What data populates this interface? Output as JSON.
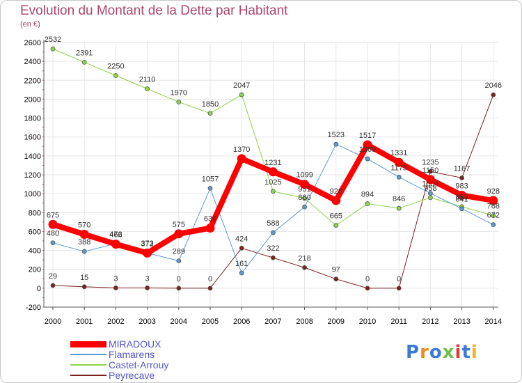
{
  "title": "Evolution du Montant de la Dette par Habitant",
  "subtitle": "(en €)",
  "logo": "Proxiti",
  "chart_data": {
    "type": "line",
    "x": [
      "2000",
      "2001",
      "2002",
      "2003",
      "2004",
      "2005",
      "2006",
      "2007",
      "2008",
      "2009",
      "2010",
      "2011",
      "2012",
      "2013",
      "2014"
    ],
    "ylim": [
      -200,
      2600
    ],
    "yticks": [
      -200,
      0,
      200,
      400,
      600,
      800,
      1000,
      1200,
      1400,
      1600,
      1800,
      2000,
      2200,
      2400,
      2600
    ],
    "grid": true,
    "legend_position": "bottom-left",
    "series": [
      {
        "name": "MIRADOUX",
        "color": "#ff0000",
        "width": 8,
        "values": [
          675,
          570,
          466,
          372,
          575,
          636,
          1370,
          1231,
          1099,
          928,
          1517,
          1331,
          1150,
          983,
          928
        ]
      },
      {
        "name": "Flamarens",
        "color": "#5b9bd5",
        "width": 1,
        "values": [
          480,
          388,
          472,
          373,
          289,
          1057,
          161,
          588,
          860,
          1523,
          1369,
          1175,
          1004,
          841,
          672
        ]
      },
      {
        "name": "Castet-Arrouy",
        "color": "#8fd24c",
        "width": 1,
        "values": [
          2532,
          2391,
          2250,
          2110,
          1970,
          1850,
          2047,
          1025,
          951,
          665,
          894,
          846,
          958,
          863,
          768
        ]
      },
      {
        "name": "Peyrecave",
        "color": "#7b2020",
        "width": 1,
        "values": [
          29,
          15,
          3,
          3,
          0,
          0,
          424,
          322,
          218,
          97,
          0,
          0,
          1235,
          1167,
          2046
        ]
      }
    ],
    "labels": [
      {
        "series": 0,
        "i": 0,
        "text": "675"
      },
      {
        "series": 0,
        "i": 1,
        "text": "570"
      },
      {
        "series": 0,
        "i": 2,
        "text": "466"
      },
      {
        "series": 0,
        "i": 3,
        "text": "372"
      },
      {
        "series": 0,
        "i": 4,
        "text": "575"
      },
      {
        "series": 0,
        "i": 5,
        "text": "636"
      },
      {
        "series": 0,
        "i": 6,
        "text": "1370"
      },
      {
        "series": 0,
        "i": 7,
        "text": "1231"
      },
      {
        "series": 0,
        "i": 8,
        "text": "1099"
      },
      {
        "series": 0,
        "i": 9,
        "text": "928"
      },
      {
        "series": 0,
        "i": 10,
        "text": "1517"
      },
      {
        "series": 0,
        "i": 11,
        "text": "1331"
      },
      {
        "series": 0,
        "i": 12,
        "text": "1150"
      },
      {
        "series": 0,
        "i": 13,
        "text": "983"
      },
      {
        "series": 0,
        "i": 14,
        "text": "928"
      },
      {
        "series": 1,
        "i": 0,
        "text": "480"
      },
      {
        "series": 1,
        "i": 1,
        "text": "388"
      },
      {
        "series": 1,
        "i": 2,
        "text": "472"
      },
      {
        "series": 1,
        "i": 3,
        "text": "373"
      },
      {
        "series": 1,
        "i": 4,
        "text": "289"
      },
      {
        "series": 1,
        "i": 5,
        "text": "1057"
      },
      {
        "series": 1,
        "i": 6,
        "text": "161"
      },
      {
        "series": 1,
        "i": 7,
        "text": "588"
      },
      {
        "series": 1,
        "i": 8,
        "text": "860"
      },
      {
        "series": 1,
        "i": 9,
        "text": "1523"
      },
      {
        "series": 1,
        "i": 10,
        "text": "1369"
      },
      {
        "series": 1,
        "i": 11,
        "text": "1175"
      },
      {
        "series": 1,
        "i": 12,
        "text": "1004"
      },
      {
        "series": 1,
        "i": 13,
        "text": "841"
      },
      {
        "series": 1,
        "i": 14,
        "text": "672"
      },
      {
        "series": 2,
        "i": 0,
        "text": "2532"
      },
      {
        "series": 2,
        "i": 1,
        "text": "2391"
      },
      {
        "series": 2,
        "i": 2,
        "text": "2250"
      },
      {
        "series": 2,
        "i": 3,
        "text": "2110"
      },
      {
        "series": 2,
        "i": 4,
        "text": "1970"
      },
      {
        "series": 2,
        "i": 5,
        "text": "1850"
      },
      {
        "series": 2,
        "i": 6,
        "text": "2047"
      },
      {
        "series": 2,
        "i": 7,
        "text": "1025"
      },
      {
        "series": 2,
        "i": 8,
        "text": "951"
      },
      {
        "series": 2,
        "i": 9,
        "text": "665"
      },
      {
        "series": 2,
        "i": 10,
        "text": "894"
      },
      {
        "series": 2,
        "i": 11,
        "text": "846"
      },
      {
        "series": 2,
        "i": 12,
        "text": "958"
      },
      {
        "series": 2,
        "i": 13,
        "text": "863"
      },
      {
        "series": 2,
        "i": 14,
        "text": "768"
      },
      {
        "series": 3,
        "i": 0,
        "text": "29"
      },
      {
        "series": 3,
        "i": 1,
        "text": "15"
      },
      {
        "series": 3,
        "i": 2,
        "text": "3"
      },
      {
        "series": 3,
        "i": 3,
        "text": "3"
      },
      {
        "series": 3,
        "i": 4,
        "text": "0"
      },
      {
        "series": 3,
        "i": 5,
        "text": "0"
      },
      {
        "series": 3,
        "i": 6,
        "text": "424"
      },
      {
        "series": 3,
        "i": 7,
        "text": "322"
      },
      {
        "series": 3,
        "i": 8,
        "text": "218"
      },
      {
        "series": 3,
        "i": 9,
        "text": "97"
      },
      {
        "series": 3,
        "i": 10,
        "text": "0"
      },
      {
        "series": 3,
        "i": 11,
        "text": "0"
      },
      {
        "series": 3,
        "i": 12,
        "text": "1235"
      },
      {
        "series": 3,
        "i": 13,
        "text": "1167"
      },
      {
        "series": 3,
        "i": 14,
        "text": "2046"
      }
    ]
  }
}
